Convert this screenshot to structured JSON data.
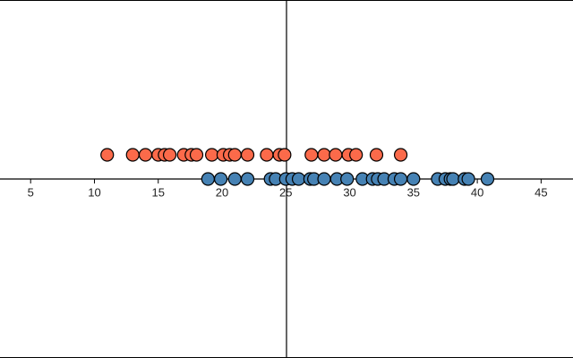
{
  "chart_data": {
    "type": "strip",
    "xlim": [
      2.6,
      47.5
    ],
    "xticks": [
      5,
      10,
      15,
      20,
      25,
      30,
      35,
      40,
      45
    ],
    "ylim": [
      -7.4,
      7.4
    ],
    "series": [
      {
        "color": "#fb6a4a",
        "y": 1,
        "values": [
          11,
          13,
          14,
          15,
          15.5,
          15.9,
          17,
          17.6,
          18,
          19.2,
          20.1,
          20.6,
          21,
          22,
          23.5,
          24.5,
          24.9,
          27,
          28,
          28.9,
          29.9,
          30.5,
          32.1,
          34
        ]
      },
      {
        "color": "#4682b4",
        "y": 0,
        "values": [
          18.9,
          19.9,
          21,
          22,
          23.8,
          24.2,
          25,
          25.5,
          26,
          26.9,
          27.2,
          28,
          29,
          29.8,
          31,
          31.8,
          32.2,
          32.7,
          33.5,
          34,
          35,
          36.9,
          37.5,
          37.9,
          38.1,
          39,
          39.3,
          40.8
        ]
      }
    ]
  }
}
